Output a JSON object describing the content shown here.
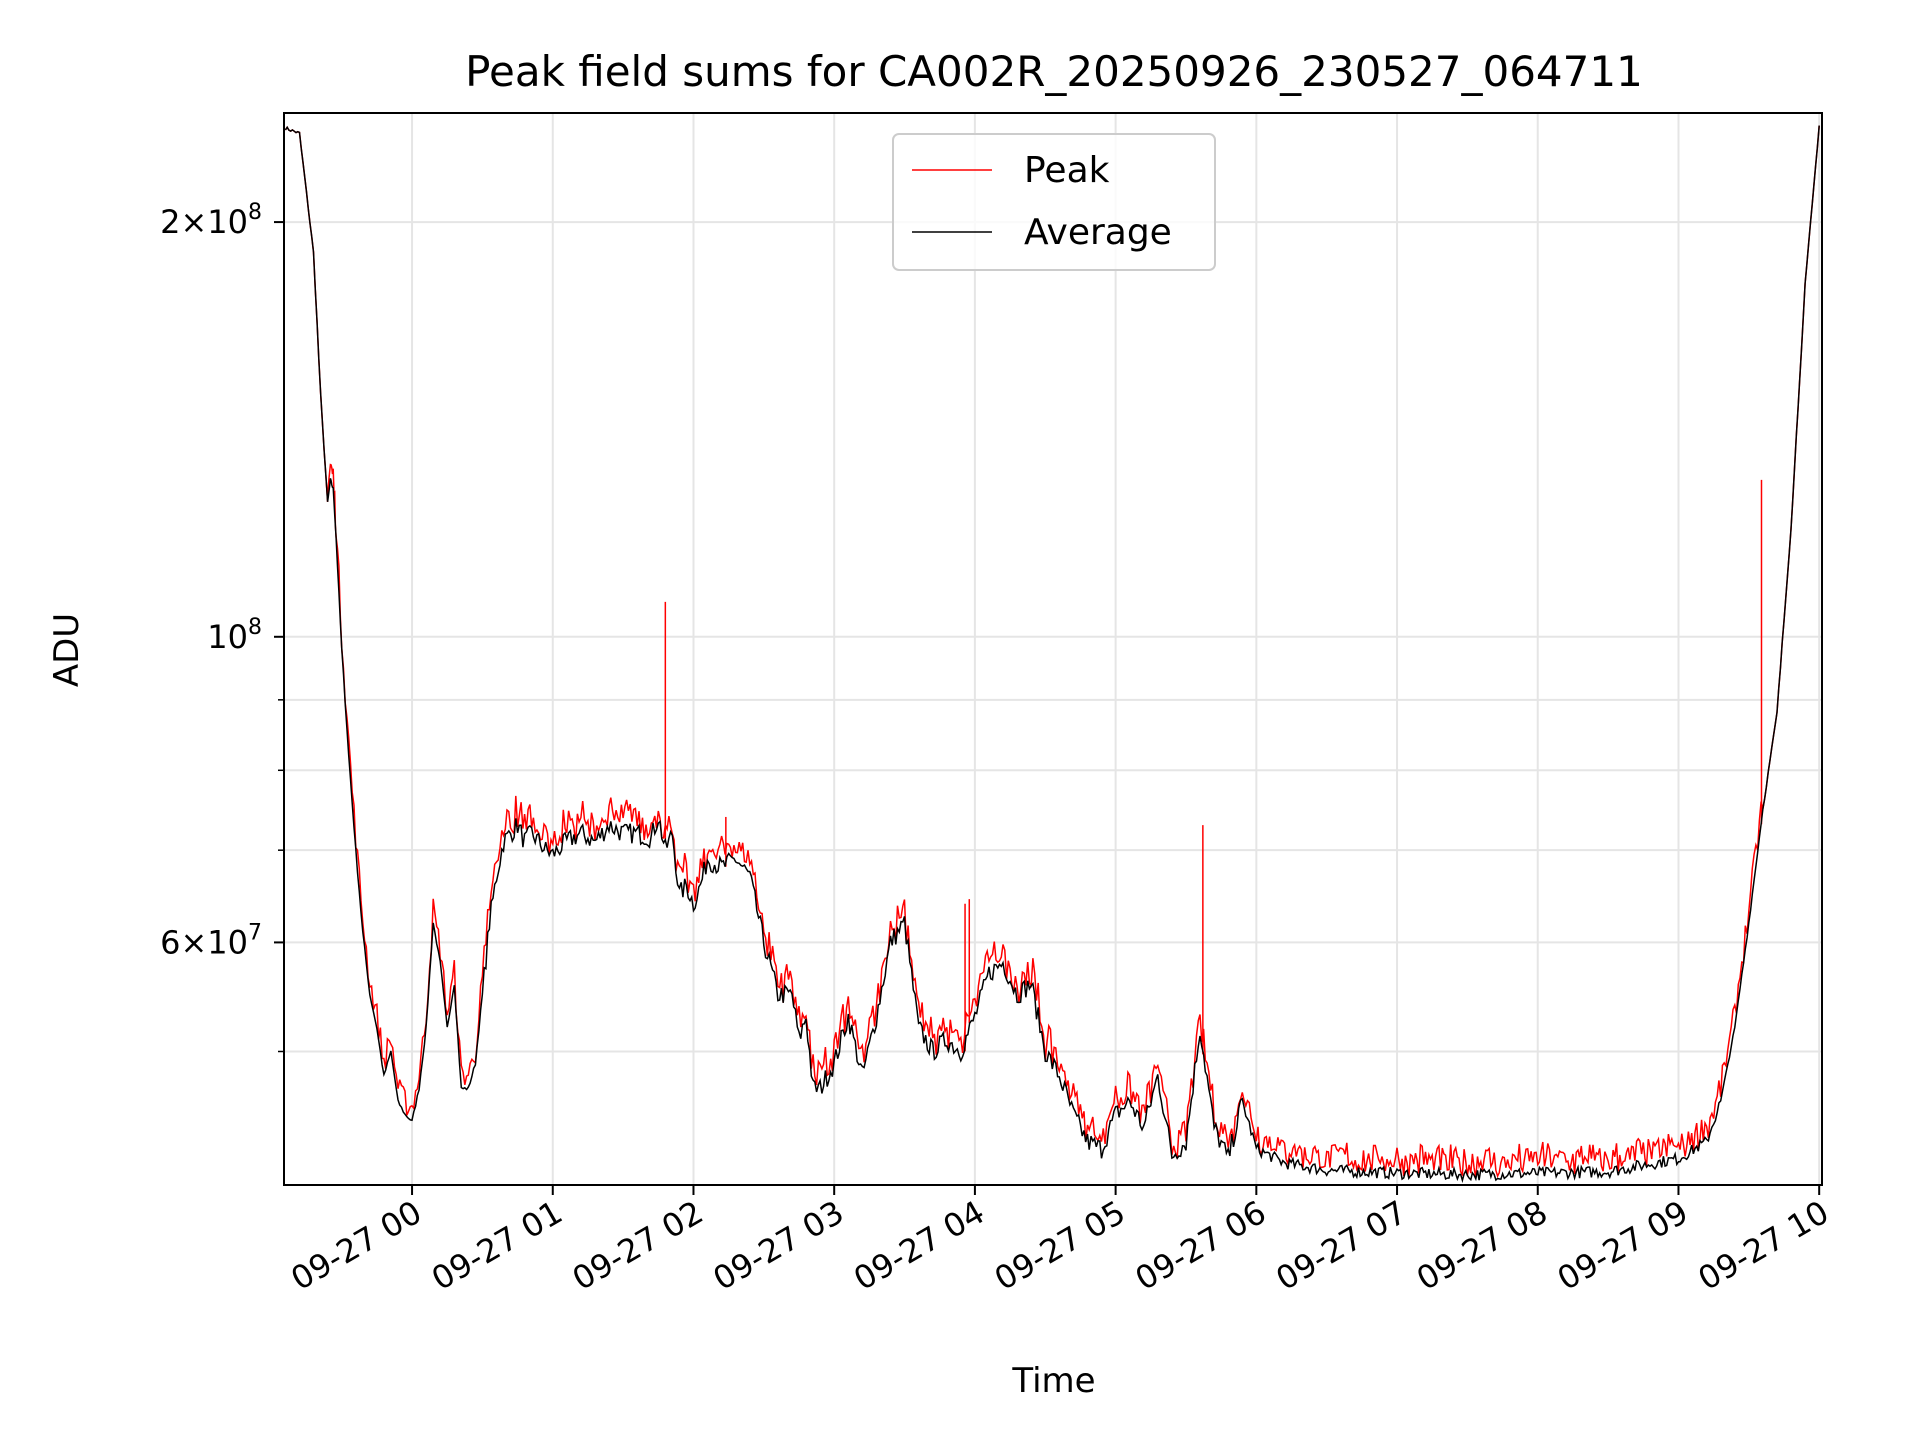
{
  "chart_data": {
    "type": "line",
    "title": "Peak field sums for CA002R_20250926_230527_064711",
    "xlabel": "Time",
    "ylabel": "ADU",
    "yscale": "log",
    "grid": true,
    "legend_placement": "upper center",
    "x_unit": "hours since 09-27 00:00 (negative = 09-26)",
    "xlim": [
      -0.91,
      10.02
    ],
    "ylim": [
      40000000,
      240000000
    ],
    "x_ticks": [
      {
        "value": 0,
        "label": "09-27 00"
      },
      {
        "value": 1,
        "label": "09-27 01"
      },
      {
        "value": 2,
        "label": "09-27 02"
      },
      {
        "value": 3,
        "label": "09-27 03"
      },
      {
        "value": 4,
        "label": "09-27 04"
      },
      {
        "value": 5,
        "label": "09-27 05"
      },
      {
        "value": 6,
        "label": "09-27 06"
      },
      {
        "value": 7,
        "label": "09-27 07"
      },
      {
        "value": 8,
        "label": "09-27 08"
      },
      {
        "value": 9,
        "label": "09-27 09"
      },
      {
        "value": 10,
        "label": "09-27 10"
      }
    ],
    "y_ticks_major": [
      {
        "value": 60000000,
        "mantissa": "6",
        "exponent": "7"
      },
      {
        "value": 100000000,
        "mantissa": "",
        "exponent": "8"
      },
      {
        "value": 200000000,
        "mantissa": "2",
        "exponent": "8"
      }
    ],
    "y_ticks_minor": [
      50000000,
      70000000,
      80000000,
      90000000
    ],
    "series": [
      {
        "name": "Average",
        "color": "#000000",
        "x": [
          -0.9,
          -0.8,
          -0.7,
          -0.65,
          -0.6,
          -0.58,
          -0.56,
          -0.54,
          -0.5,
          -0.45,
          -0.4,
          -0.35,
          -0.3,
          -0.25,
          -0.2,
          -0.15,
          -0.1,
          -0.05,
          0.0,
          0.05,
          0.1,
          0.15,
          0.2,
          0.25,
          0.3,
          0.35,
          0.4,
          0.45,
          0.5,
          0.55,
          0.6,
          0.65,
          0.7,
          0.75,
          0.8,
          0.85,
          0.9,
          0.95,
          1.0,
          1.1,
          1.2,
          1.3,
          1.4,
          1.5,
          1.6,
          1.7,
          1.75,
          1.8,
          1.85,
          1.9,
          1.95,
          2.0,
          2.05,
          2.1,
          2.2,
          2.3,
          2.4,
          2.5,
          2.6,
          2.7,
          2.75,
          2.8,
          2.85,
          2.9,
          3.0,
          3.1,
          3.2,
          3.3,
          3.4,
          3.5,
          3.6,
          3.7,
          3.8,
          3.9,
          4.0,
          4.1,
          4.2,
          4.3,
          4.4,
          4.5,
          4.6,
          4.7,
          4.8,
          4.9,
          5.0,
          5.1,
          5.2,
          5.3,
          5.35,
          5.4,
          5.5,
          5.6,
          5.7,
          5.8,
          5.9,
          6.0,
          6.2,
          6.5,
          7.0,
          7.5,
          8.0,
          8.5,
          9.0,
          9.2,
          9.3,
          9.4,
          9.5,
          9.6,
          9.7,
          9.8,
          9.9,
          10.0
        ],
        "y": [
          234000000,
          232000000,
          190000000,
          150000000,
          125000000,
          130000000,
          128000000,
          118000000,
          98000000,
          82000000,
          70000000,
          61000000,
          55000000,
          52000000,
          48000000,
          50000000,
          46000000,
          45000000,
          44500000,
          47000000,
          52000000,
          62000000,
          58000000,
          52000000,
          56000000,
          47000000,
          47000000,
          49000000,
          55000000,
          62000000,
          67000000,
          71000000,
          72000000,
          73000000,
          71000000,
          72000000,
          71000000,
          70000000,
          69500000,
          71000000,
          72000000,
          71000000,
          73000000,
          72000000,
          72000000,
          71500000,
          74000000,
          70000000,
          72000000,
          65000000,
          66000000,
          64000000,
          66000000,
          69000000,
          68000000,
          69000000,
          67000000,
          60000000,
          55000000,
          55000000,
          51000000,
          53000000,
          47000000,
          47000000,
          49000000,
          53000000,
          48000000,
          53000000,
          60000000,
          62000000,
          52000000,
          50000000,
          51000000,
          50000000,
          53000000,
          57000000,
          58000000,
          55000000,
          56000000,
          50000000,
          48000000,
          45000000,
          43000000,
          42500000,
          45000000,
          46000000,
          44000000,
          48000000,
          45000000,
          42000000,
          43000000,
          52000000,
          44000000,
          41800000,
          46000000,
          42500000,
          41500000,
          41000000,
          40800000,
          40700000,
          40800000,
          40900000,
          41800000,
          43000000,
          46000000,
          52000000,
          62000000,
          75000000,
          88000000,
          120000000,
          180000000,
          235000000
        ]
      },
      {
        "name": "Peak",
        "color": "#ff0000",
        "spikes": [
          {
            "x": 1.8,
            "y": 106000000
          },
          {
            "x": 2.23,
            "y": 74000000
          },
          {
            "x": 3.93,
            "y": 64000000
          },
          {
            "x": 3.96,
            "y": 64500000
          },
          {
            "x": 5.62,
            "y": 73000000
          },
          {
            "x": 9.59,
            "y": 130000000
          }
        ]
      }
    ]
  }
}
